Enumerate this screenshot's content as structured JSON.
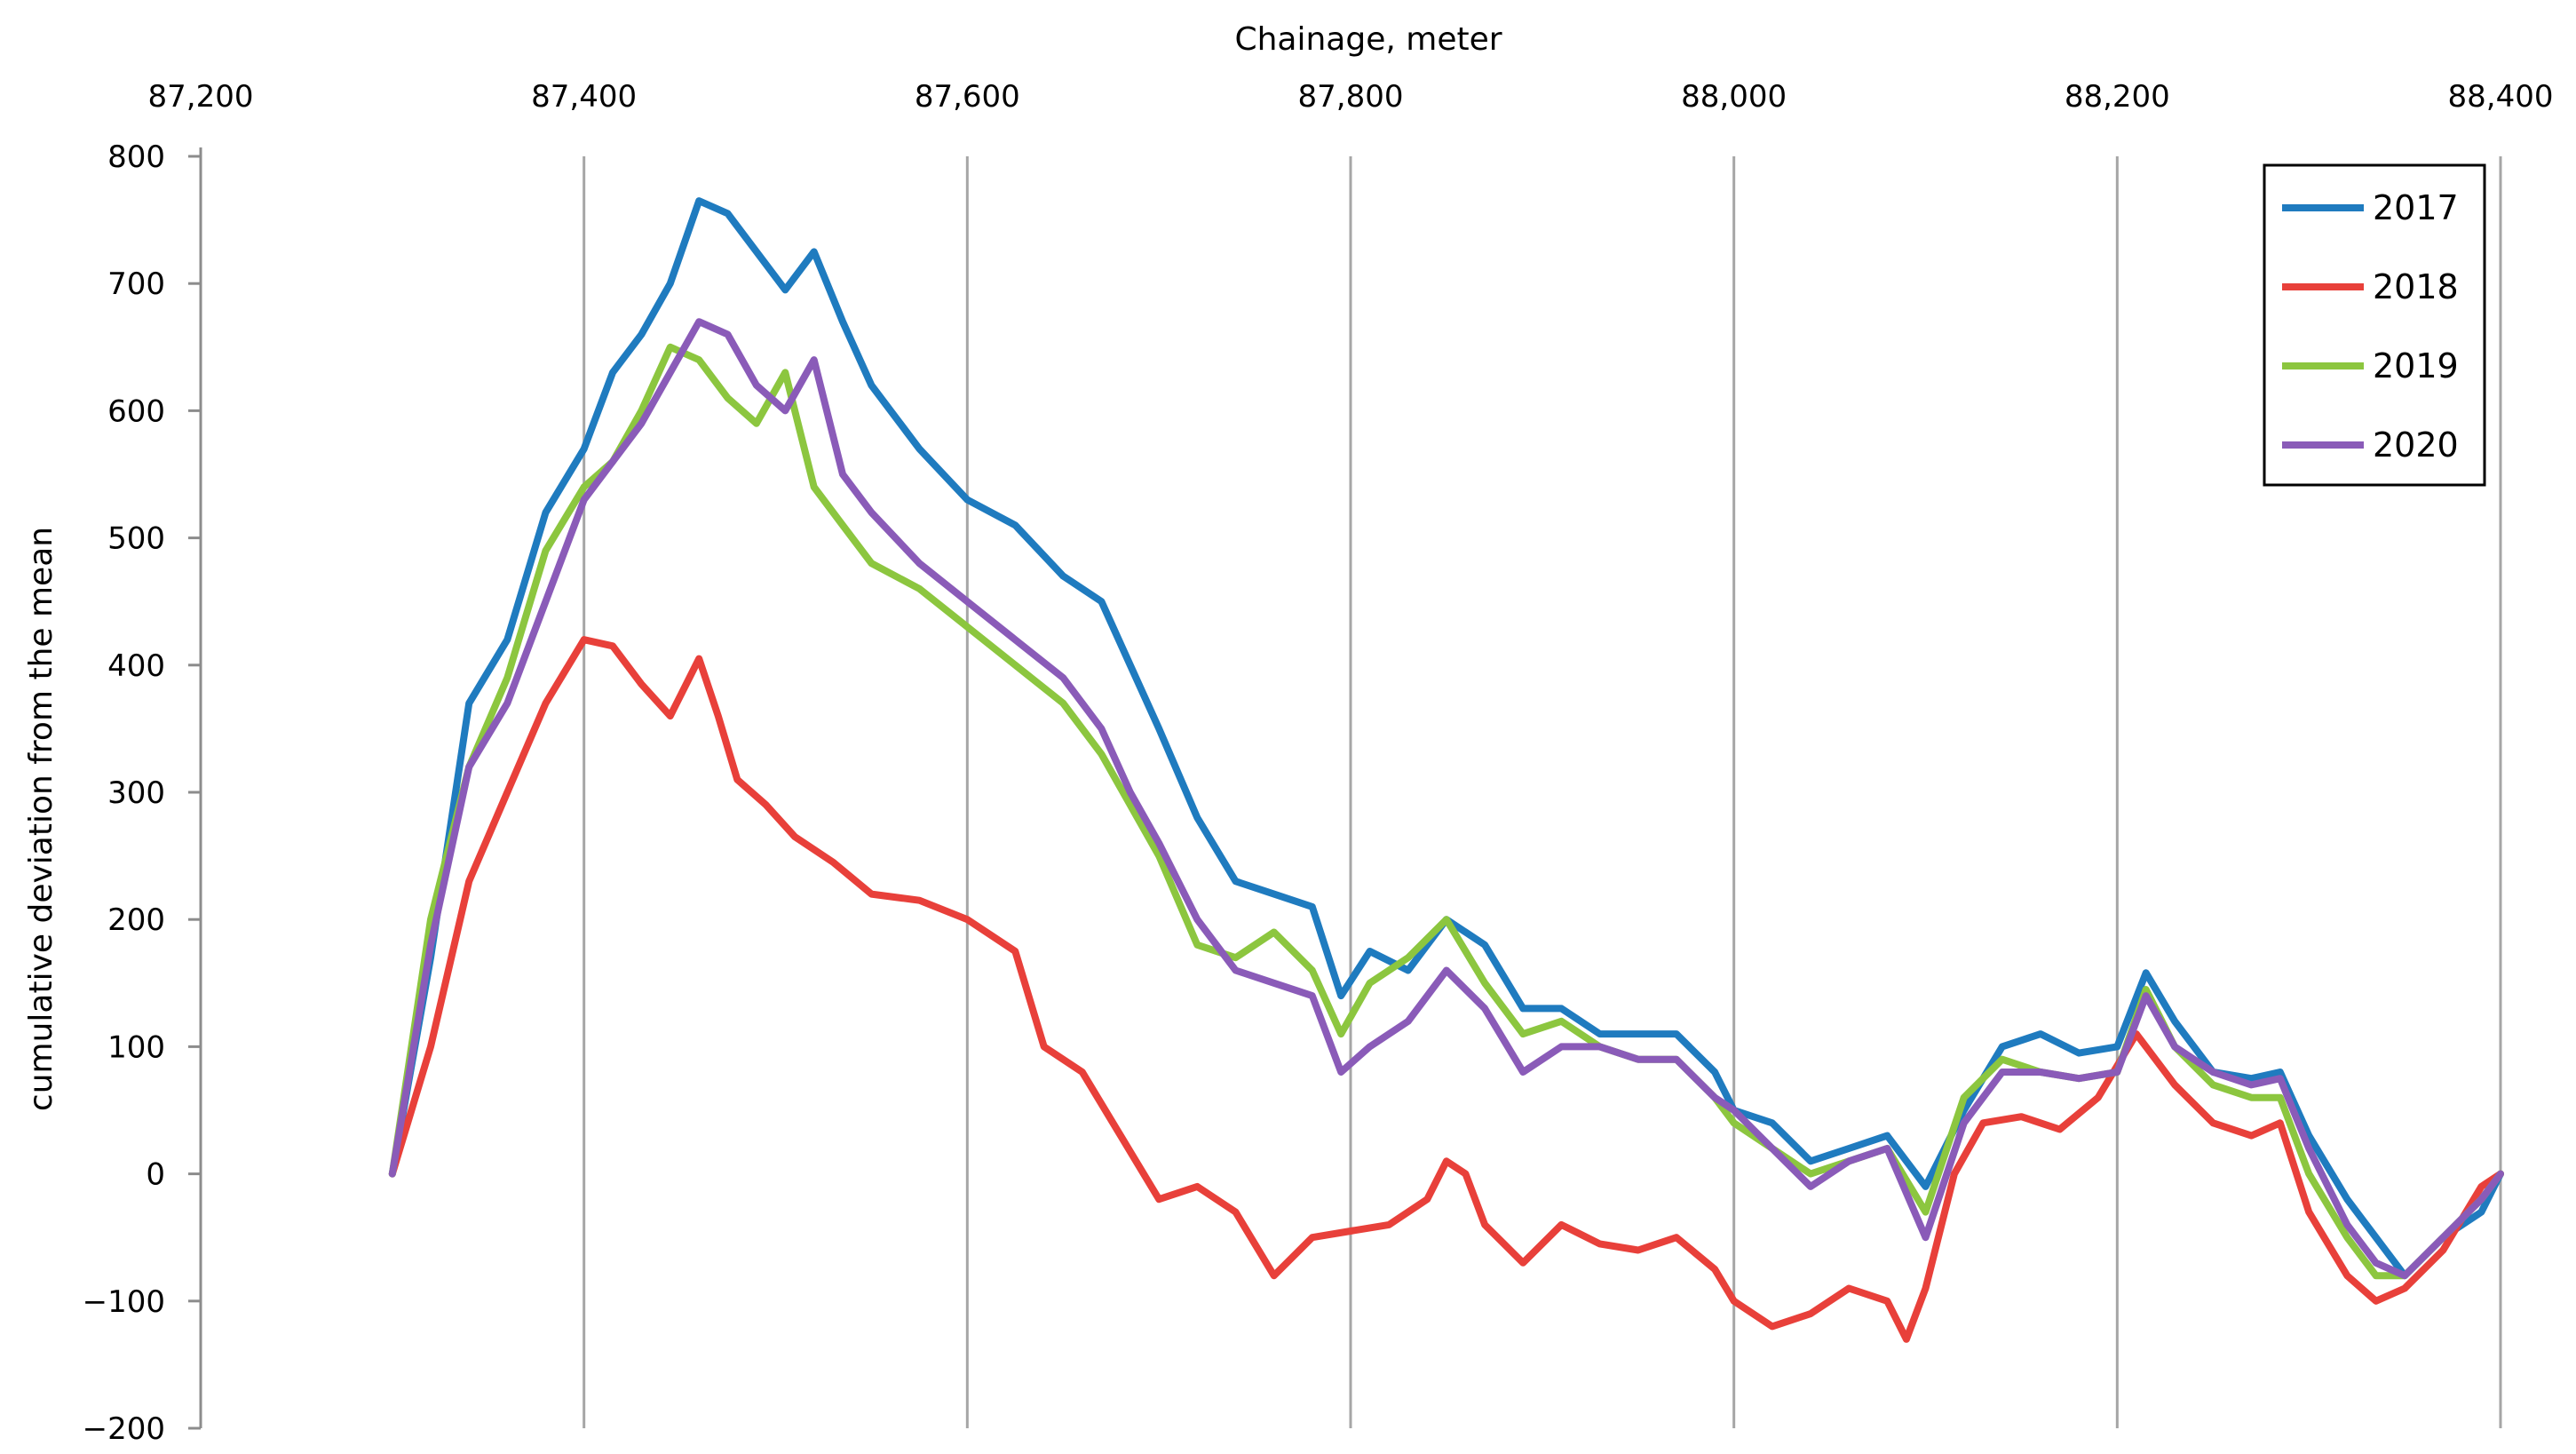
{
  "chart_data": {
    "type": "line",
    "title": "",
    "xlabel": "Chainage, meter",
    "ylabel": "cumulative deviation from the mean",
    "xlim": [
      87200,
      88400
    ],
    "ylim": [
      -200,
      800
    ],
    "x_ticks": [
      87200,
      87400,
      87600,
      87800,
      88000,
      88200,
      88400
    ],
    "x_tick_labels": [
      "87,200",
      "87,400",
      "87,600",
      "87,800",
      "88,000",
      "88,200",
      "88,400"
    ],
    "y_ticks": [
      800,
      700,
      600,
      500,
      400,
      300,
      200,
      100,
      0,
      -100,
      -200
    ],
    "y_tick_labels": [
      "800",
      "700",
      "600",
      "500",
      "400",
      "300",
      "200",
      "100",
      "0",
      "−100",
      "−200"
    ],
    "x_axis_position": "top",
    "grid": true,
    "legend_position": "top-right",
    "series": [
      {
        "name": "2017",
        "color": "#1f7bbf",
        "x": [
          87300,
          87320,
          87340,
          87360,
          87380,
          87400,
          87415,
          87430,
          87445,
          87460,
          87475,
          87490,
          87505,
          87520,
          87535,
          87550,
          87575,
          87600,
          87625,
          87650,
          87670,
          87685,
          87700,
          87720,
          87740,
          87760,
          87780,
          87795,
          87810,
          87830,
          87850,
          87870,
          87890,
          87910,
          87930,
          87950,
          87970,
          87990,
          88000,
          88020,
          88040,
          88060,
          88080,
          88100,
          88120,
          88140,
          88160,
          88180,
          88200,
          88215,
          88230,
          88250,
          88270,
          88285,
          88300,
          88320,
          88335,
          88350,
          88370,
          88390,
          88400
        ],
        "y": [
          0,
          170,
          370,
          420,
          520,
          570,
          630,
          660,
          700,
          765,
          755,
          725,
          695,
          725,
          670,
          620,
          570,
          530,
          510,
          470,
          450,
          400,
          350,
          280,
          230,
          220,
          210,
          140,
          175,
          160,
          200,
          180,
          130,
          130,
          110,
          110,
          110,
          80,
          50,
          40,
          10,
          20,
          30,
          -10,
          50,
          100,
          110,
          95,
          100,
          158,
          120,
          80,
          75,
          80,
          30,
          -20,
          -50,
          -80,
          -50,
          -30,
          0
        ]
      },
      {
        "name": "2018",
        "color": "#e8403a",
        "x": [
          87300,
          87320,
          87340,
          87360,
          87380,
          87400,
          87415,
          87430,
          87445,
          87460,
          87470,
          87480,
          87495,
          87510,
          87530,
          87550,
          87575,
          87600,
          87625,
          87640,
          87660,
          87680,
          87700,
          87720,
          87740,
          87760,
          87780,
          87800,
          87820,
          87840,
          87850,
          87860,
          87870,
          87890,
          87910,
          87930,
          87950,
          87970,
          87990,
          88000,
          88020,
          88040,
          88060,
          88080,
          88090,
          88100,
          88115,
          88130,
          88150,
          88170,
          88190,
          88210,
          88230,
          88250,
          88270,
          88285,
          88300,
          88320,
          88335,
          88350,
          88370,
          88390,
          88400
        ],
        "y": [
          0,
          100,
          230,
          300,
          370,
          420,
          415,
          385,
          360,
          405,
          360,
          310,
          290,
          265,
          245,
          220,
          215,
          200,
          175,
          100,
          80,
          30,
          -20,
          -10,
          -30,
          -80,
          -50,
          -45,
          -40,
          -20,
          10,
          0,
          -40,
          -70,
          -40,
          -55,
          -60,
          -50,
          -75,
          -100,
          -120,
          -110,
          -90,
          -100,
          -130,
          -90,
          0,
          40,
          45,
          35,
          60,
          110,
          70,
          40,
          30,
          40,
          -30,
          -80,
          -100,
          -90,
          -60,
          -10,
          0
        ]
      },
      {
        "name": "2019",
        "color": "#8cc63f",
        "x": [
          87300,
          87320,
          87340,
          87360,
          87380,
          87400,
          87415,
          87430,
          87445,
          87460,
          87475,
          87490,
          87505,
          87520,
          87535,
          87550,
          87575,
          87600,
          87625,
          87650,
          87670,
          87685,
          87700,
          87720,
          87740,
          87760,
          87780,
          87795,
          87810,
          87830,
          87850,
          87870,
          87890,
          87910,
          87930,
          87950,
          87970,
          87990,
          88000,
          88020,
          88040,
          88060,
          88080,
          88100,
          88120,
          88140,
          88160,
          88180,
          88200,
          88215,
          88230,
          88250,
          88270,
          88285,
          88300,
          88320,
          88335,
          88350,
          88370,
          88390,
          88400
        ],
        "y": [
          0,
          200,
          320,
          390,
          490,
          540,
          560,
          600,
          650,
          640,
          610,
          590,
          630,
          540,
          510,
          480,
          460,
          430,
          400,
          370,
          330,
          290,
          250,
          180,
          170,
          190,
          160,
          110,
          150,
          170,
          200,
          150,
          110,
          120,
          100,
          90,
          90,
          60,
          40,
          20,
          0,
          10,
          20,
          -30,
          60,
          90,
          80,
          75,
          80,
          145,
          100,
          70,
          60,
          60,
          0,
          -50,
          -80,
          -80,
          -50,
          -20,
          0
        ]
      },
      {
        "name": "2020",
        "color": "#8a5bb8",
        "x": [
          87300,
          87320,
          87340,
          87360,
          87380,
          87400,
          87415,
          87430,
          87445,
          87460,
          87475,
          87490,
          87505,
          87520,
          87535,
          87550,
          87575,
          87600,
          87625,
          87650,
          87670,
          87685,
          87700,
          87720,
          87740,
          87760,
          87780,
          87795,
          87810,
          87830,
          87850,
          87870,
          87890,
          87910,
          87930,
          87950,
          87970,
          87990,
          88000,
          88020,
          88040,
          88060,
          88080,
          88100,
          88120,
          88140,
          88160,
          88180,
          88200,
          88215,
          88230,
          88250,
          88270,
          88285,
          88300,
          88320,
          88335,
          88350,
          88370,
          88390,
          88400
        ],
        "y": [
          0,
          180,
          320,
          370,
          450,
          530,
          560,
          590,
          630,
          670,
          660,
          620,
          600,
          640,
          550,
          520,
          480,
          450,
          420,
          390,
          350,
          300,
          260,
          200,
          160,
          150,
          140,
          80,
          100,
          120,
          160,
          130,
          80,
          100,
          100,
          90,
          90,
          60,
          50,
          20,
          -10,
          10,
          20,
          -50,
          40,
          80,
          80,
          75,
          80,
          140,
          100,
          80,
          70,
          75,
          20,
          -40,
          -70,
          -80,
          -50,
          -20,
          0
        ]
      }
    ]
  }
}
